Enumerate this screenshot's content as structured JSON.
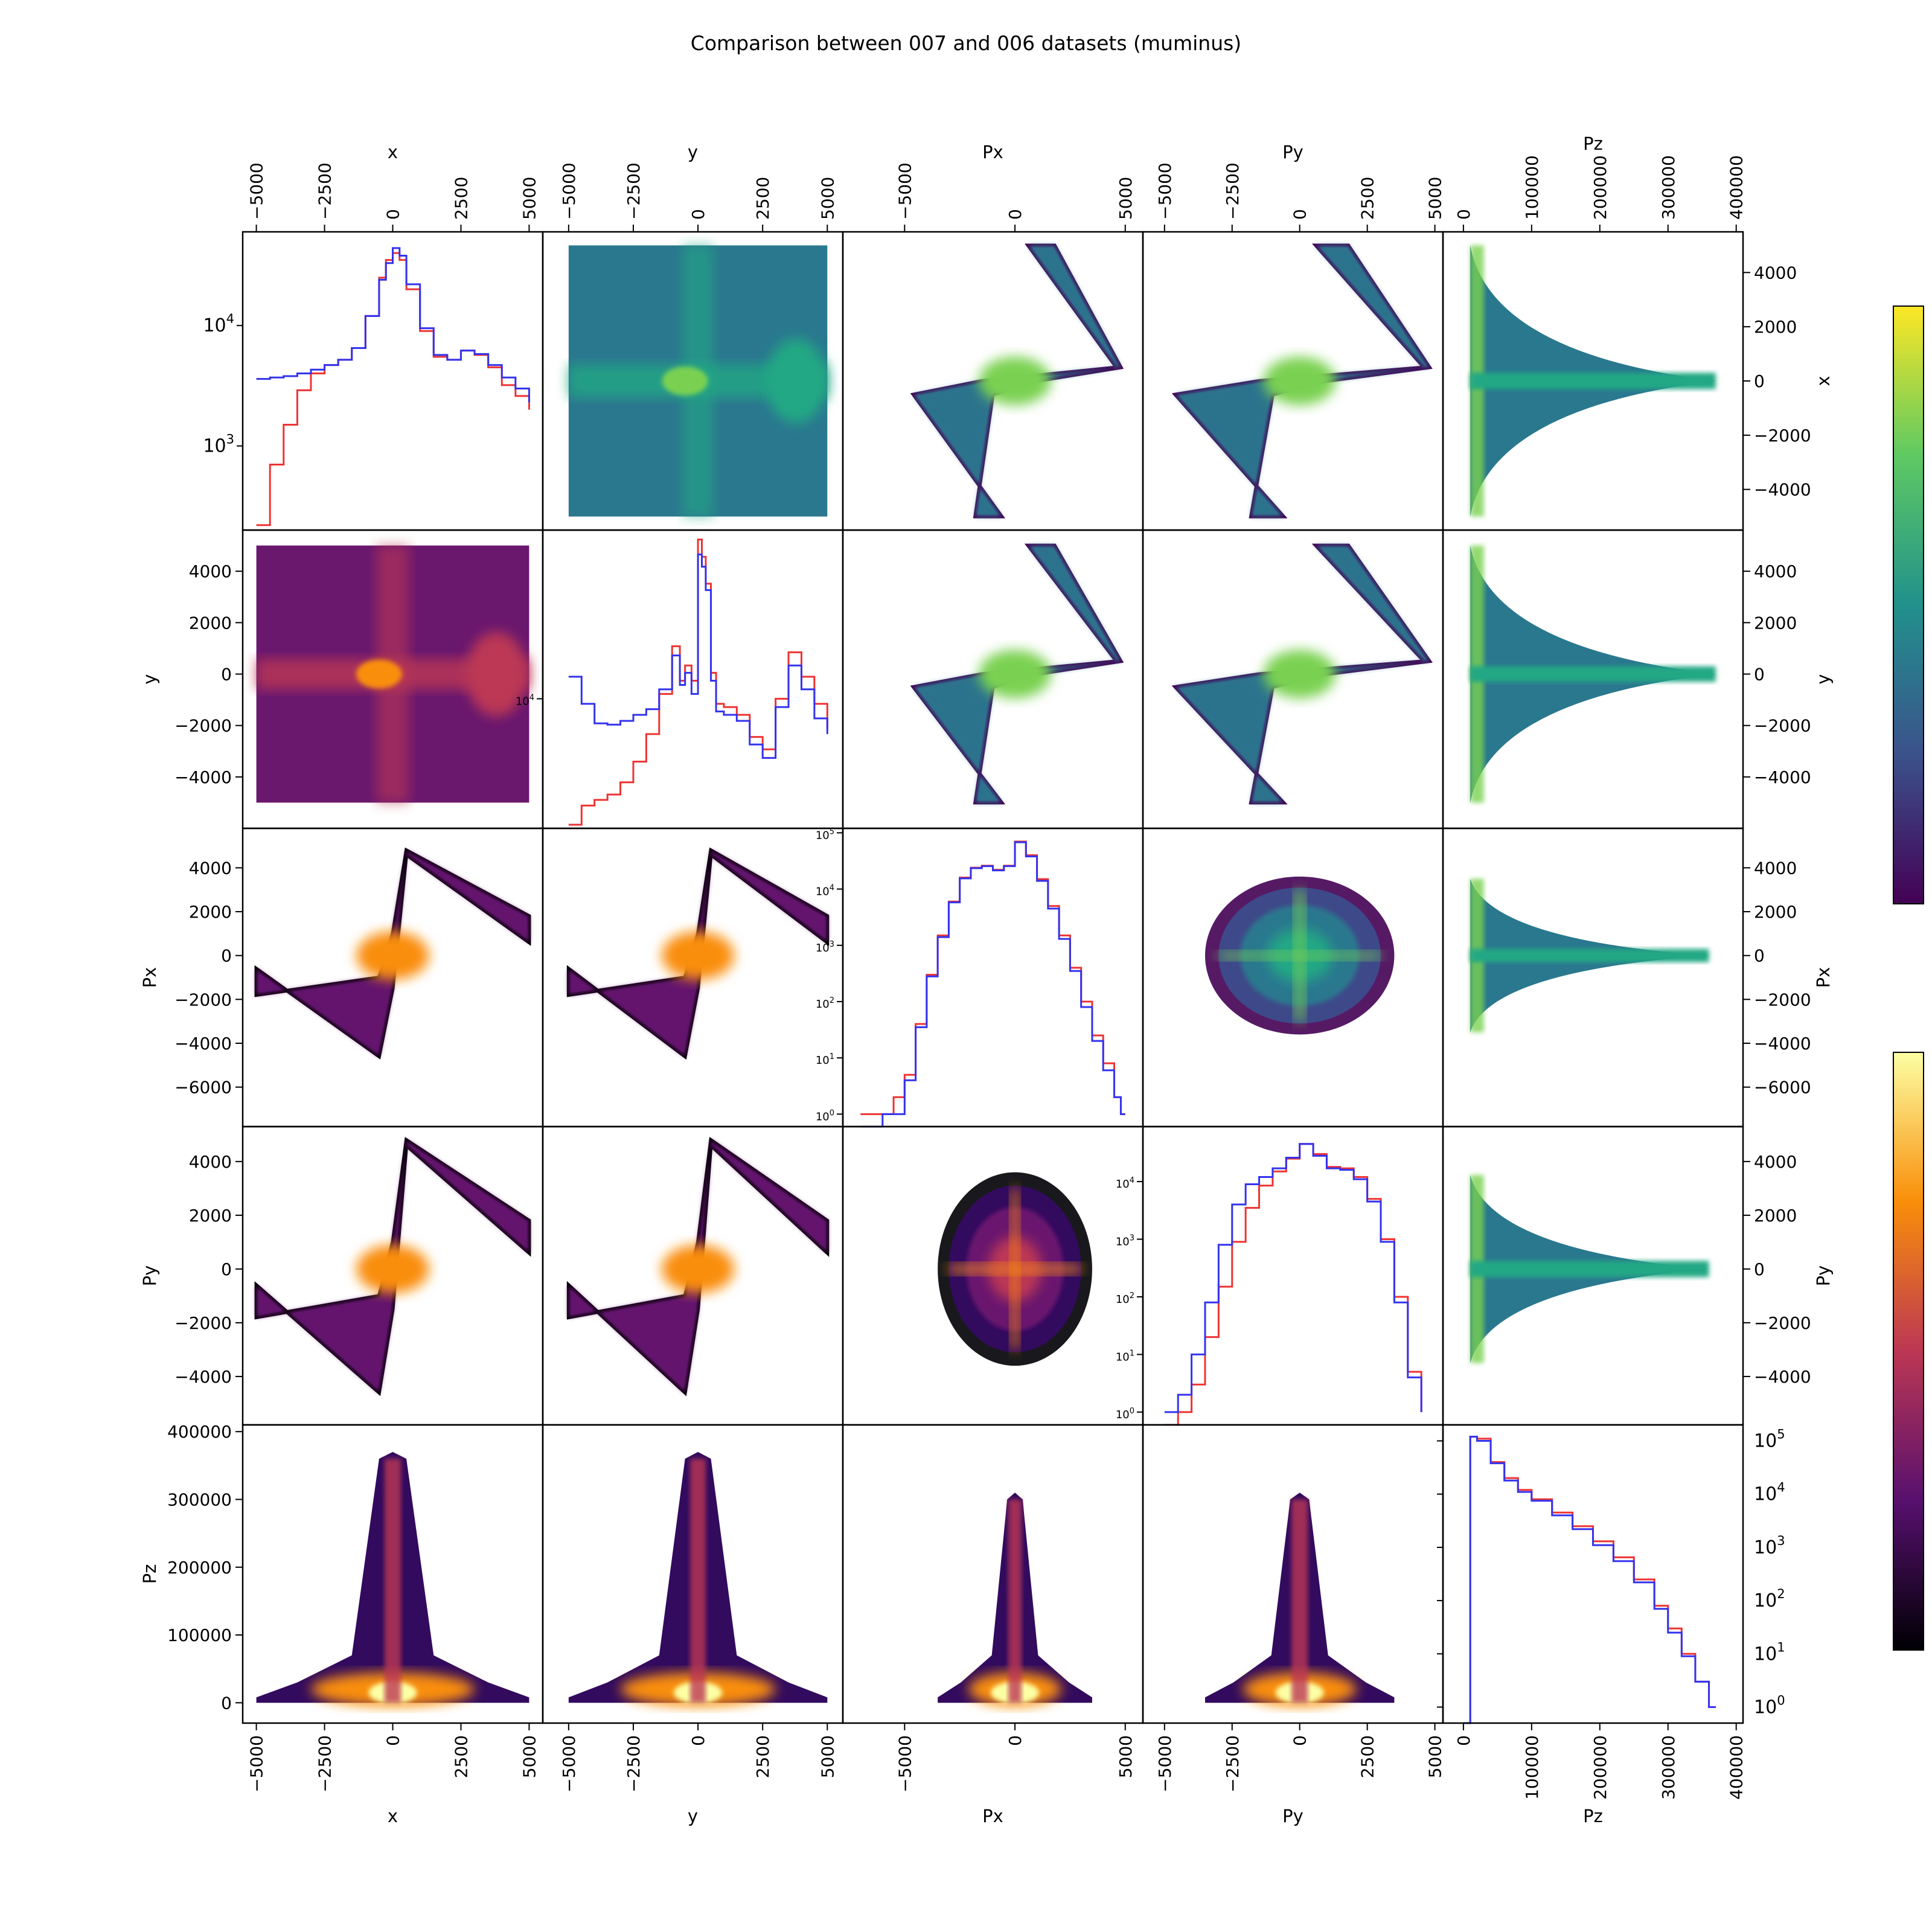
{
  "figure": {
    "title": "Comparison between 007 and 006 datasets (muminus)"
  },
  "chart_data": [
    {
      "type": "corner-plot",
      "title": "Comparison between 007 and 006 datasets (muminus)",
      "variables": [
        "x",
        "y",
        "Px",
        "Py",
        "Pz"
      ],
      "axis_ranges": {
        "x": [
          -5500,
          5500
        ],
        "y": [
          -6000,
          5600
        ],
        "Px": [
          -7800,
          5800
        ],
        "Py": [
          -5800,
          5300
        ],
        "Pz": [
          -30000,
          410000
        ]
      },
      "ticks": {
        "x": [
          "−5000",
          "−2500",
          "0",
          "2500",
          "5000"
        ],
        "y": [
          "−5000",
          "−2500",
          "0",
          "2500",
          "5000"
        ],
        "Px": [
          "−5000",
          "0",
          "5000"
        ],
        "Py": [
          "−5000",
          "−2500",
          "0",
          "2500",
          "5000"
        ],
        "Pz": [
          "0",
          "100000",
          "200000",
          "300000",
          "400000"
        ]
      },
      "row_ticks": {
        "x": [
          "4000",
          "2000",
          "0",
          "−2000",
          "−4000"
        ],
        "y": [
          "4000",
          "2000",
          "0",
          "−2000",
          "−4000"
        ],
        "Px": [
          "4000",
          "2000",
          "0",
          "−2000",
          "−4000",
          "−6000"
        ],
        "Py": [
          "4000",
          "2000",
          "0",
          "−2000",
          "−4000"
        ],
        "Pz": [
          "400000",
          "300000",
          "200000",
          "100000",
          "0"
        ]
      },
      "colormaps": {
        "upper_triangle": "viridis",
        "lower_triangle": "inferno"
      },
      "series_colors": {
        "dataset_a": "#ee3333",
        "dataset_b": "#3333ee"
      }
    },
    {
      "type": "line",
      "variable": "x",
      "yscale": "log",
      "ylim": [
        200,
        60000
      ],
      "ytick_labels": [
        "10^3",
        "10^4"
      ],
      "x": [
        -5000,
        -4500,
        -4000,
        -3500,
        -3000,
        -2500,
        -2000,
        -1500,
        -1000,
        -500,
        -250,
        0,
        250,
        500,
        1000,
        1500,
        2000,
        2500,
        3000,
        3500,
        4000,
        4500,
        5000
      ],
      "series": [
        {
          "values": [
            220,
            700,
            1500,
            2900,
            4000,
            4700,
            5200,
            6500,
            12000,
            25000,
            35000,
            40000,
            35000,
            20000,
            9000,
            5500,
            5200,
            6200,
            5700,
            4500,
            3200,
            2600,
            2000
          ]
        },
        {
          "values": [
            3600,
            3700,
            3800,
            4000,
            4300,
            4700,
            5200,
            6500,
            12000,
            24000,
            33000,
            44000,
            38000,
            22000,
            9500,
            5700,
            5200,
            6200,
            5800,
            4700,
            3700,
            3000,
            2300
          ]
        }
      ]
    },
    {
      "type": "line",
      "variable": "y",
      "yscale": "log",
      "ylim": [
        2700,
        55000
      ],
      "ytick_labels": [
        "10^4"
      ],
      "x": [
        -5000,
        -4500,
        -4000,
        -3500,
        -3000,
        -2500,
        -2000,
        -1500,
        -1000,
        -700,
        -500,
        -250,
        0,
        150,
        300,
        500,
        700,
        1000,
        1500,
        2000,
        2500,
        3000,
        3500,
        4000,
        4500,
        5000
      ],
      "series": [
        {
          "values": [
            2800,
            3400,
            3600,
            3800,
            4300,
            5300,
            7000,
            10500,
            17000,
            12000,
            14000,
            12000,
            50000,
            42000,
            32000,
            13000,
            9500,
            9200,
            8500,
            6800,
            6000,
            10000,
            16000,
            12500,
            9500,
            7500
          ]
        },
        {
          "values": [
            12500,
            9500,
            7800,
            7700,
            8000,
            8500,
            9000,
            11000,
            15500,
            11500,
            13000,
            10500,
            43000,
            38000,
            30000,
            12000,
            8800,
            8500,
            8000,
            6300,
            5500,
            9200,
            14000,
            11000,
            8200,
            7000
          ]
        }
      ]
    },
    {
      "type": "line",
      "variable": "Px",
      "yscale": "log",
      "ylim": [
        0.6,
        120000
      ],
      "ytick_labels": [
        "10^0",
        "10^1",
        "10^2",
        "10^3",
        "10^4",
        "10^5"
      ],
      "x": [
        -7000,
        -6500,
        -6000,
        -5500,
        -5000,
        -4500,
        -4000,
        -3500,
        -3000,
        -2500,
        -2000,
        -1500,
        -1000,
        -500,
        0,
        500,
        1000,
        1500,
        2000,
        2500,
        3000,
        3500,
        4000,
        4500,
        4800,
        5000
      ],
      "series": [
        {
          "values": [
            1,
            1,
            1,
            2,
            5,
            40,
            300,
            1500,
            6000,
            16000,
            24000,
            26000,
            22000,
            26000,
            70000,
            40000,
            15000,
            5000,
            1500,
            400,
            100,
            25,
            8,
            2,
            1,
            1
          ]
        },
        {
          "values": [
            0,
            0,
            1,
            1,
            4,
            35,
            280,
            1400,
            5800,
            15500,
            23500,
            25500,
            21500,
            25500,
            68000,
            38000,
            14000,
            4500,
            1300,
            350,
            80,
            20,
            6,
            2,
            1,
            1
          ]
        }
      ]
    },
    {
      "type": "line",
      "variable": "Py",
      "yscale": "log",
      "ylim": [
        0.6,
        90000
      ],
      "ytick_labels": [
        "10^0",
        "10^1",
        "10^2",
        "10^3",
        "10^4"
      ],
      "x": [
        -5000,
        -4500,
        -4000,
        -3500,
        -3000,
        -2500,
        -2000,
        -1500,
        -1000,
        -500,
        0,
        500,
        1000,
        1500,
        2000,
        2500,
        3000,
        3500,
        4000,
        4500
      ],
      "series": [
        {
          "values": [
            0,
            1,
            3,
            20,
            150,
            900,
            3500,
            8500,
            15000,
            25000,
            45000,
            30000,
            18000,
            17000,
            12000,
            5000,
            1000,
            100,
            5,
            1
          ]
        },
        {
          "values": [
            1,
            2,
            10,
            80,
            800,
            4000,
            9000,
            12000,
            17000,
            26000,
            45000,
            28000,
            17000,
            16000,
            11000,
            4500,
            900,
            80,
            4,
            1
          ]
        }
      ]
    },
    {
      "type": "line",
      "variable": "Pz",
      "yscale": "log",
      "ylim": [
        0.5,
        200000
      ],
      "ytick_labels": [
        "10^0",
        "10^1",
        "10^2",
        "10^3",
        "10^4",
        "10^5"
      ],
      "x": [
        0,
        10000,
        20000,
        40000,
        60000,
        80000,
        100000,
        130000,
        160000,
        190000,
        220000,
        250000,
        280000,
        300000,
        320000,
        340000,
        360000,
        370000
      ],
      "series": [
        {
          "values": [
            0.5,
            120000,
            110000,
            40000,
            20000,
            12000,
            8000,
            4500,
            2500,
            1300,
            650,
            250,
            80,
            30,
            10,
            3,
            1,
            1
          ]
        },
        {
          "values": [
            0.5,
            120000,
            100000,
            38000,
            18000,
            11000,
            7500,
            4000,
            2200,
            1100,
            550,
            220,
            70,
            25,
            9,
            3,
            1,
            1
          ]
        }
      ]
    }
  ]
}
